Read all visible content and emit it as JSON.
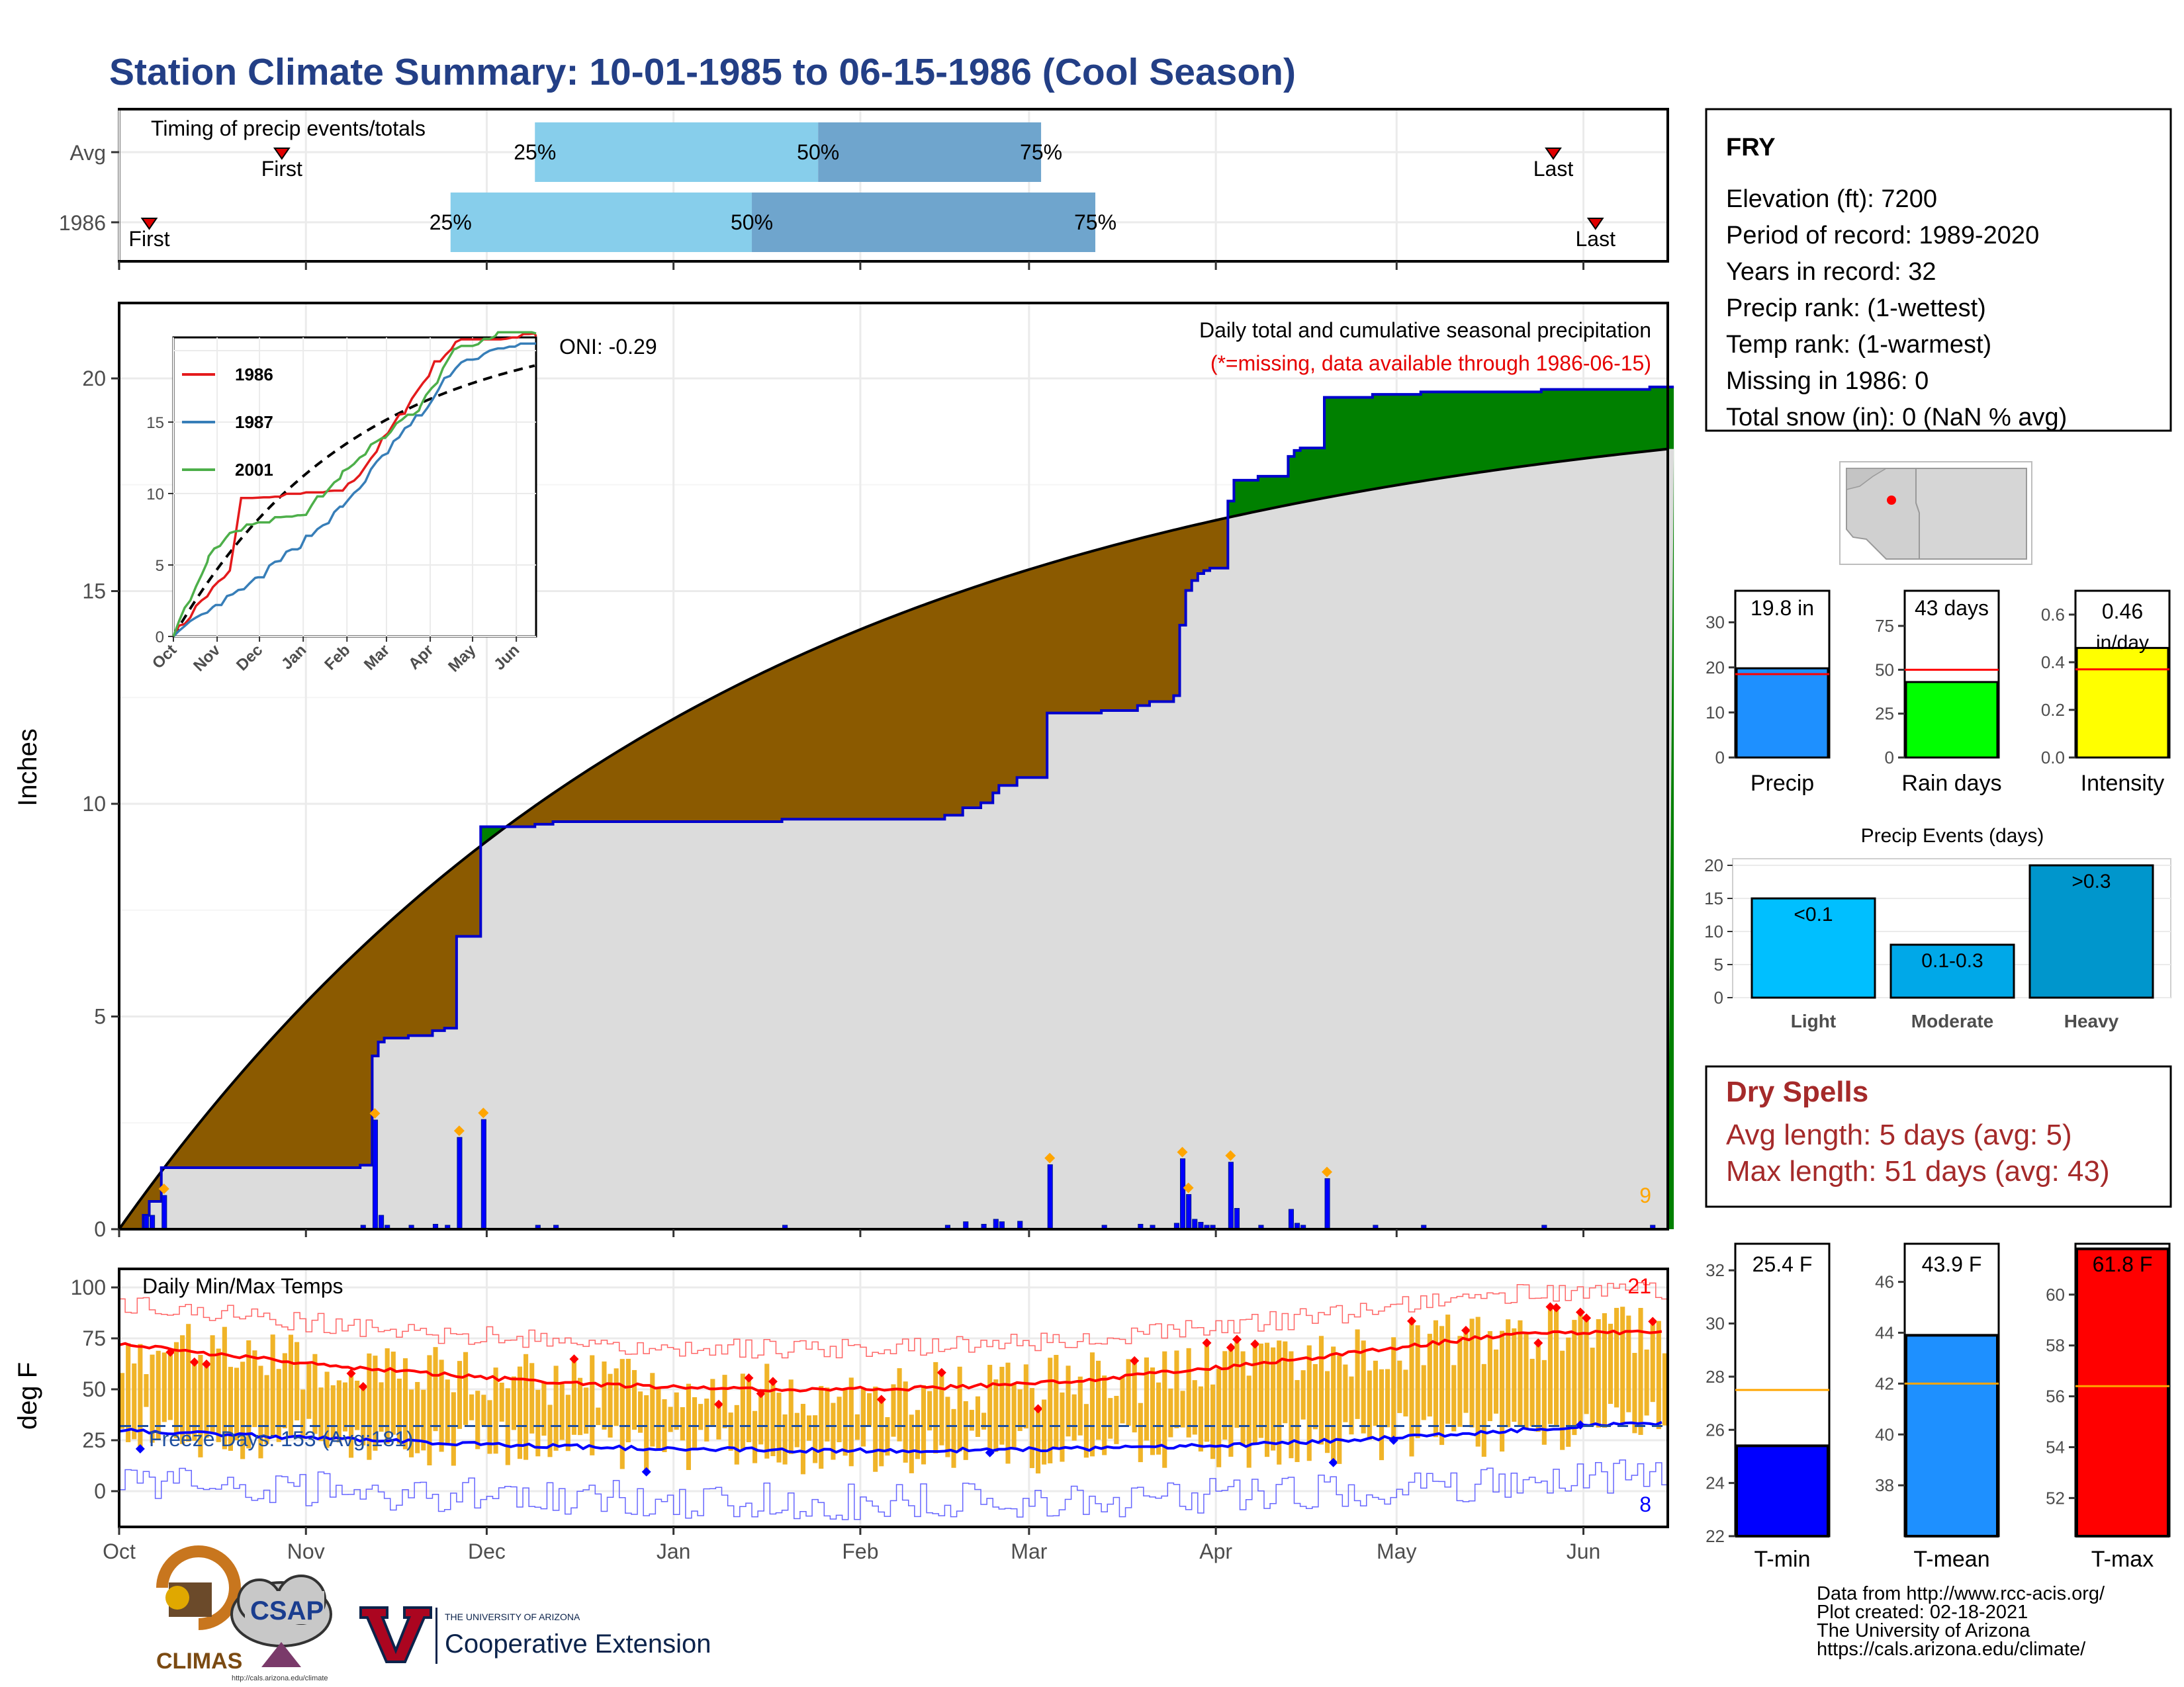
{
  "page": {
    "title": "Station Climate Summary: 10-01-1985 to 06-15-1986 (Cool Season)",
    "title_color": "#233f86"
  },
  "timing": {
    "caption": "Timing of precip events/totals",
    "rows": [
      {
        "label": "Avg",
        "first_label": "First",
        "first_date": "1985-10-28",
        "last_label": "Last",
        "last_date": "1986-05-27",
        "p25_label": "25%",
        "p25_date": "1985-12-09",
        "p50_label": "50%",
        "p50_date": "1986-01-25",
        "p75_label": "75%",
        "p75_date": "1986-03-03"
      },
      {
        "label": "1986",
        "first_label": "First",
        "first_date": "1985-10-06",
        "last_label": "Last",
        "last_date": "1986-06-03",
        "p25_label": "25%",
        "p25_date": "1985-11-25",
        "p50_label": "50%",
        "p50_date": "1986-01-14",
        "p75_label": "75%",
        "p75_date": "1986-03-12"
      }
    ],
    "colors": {
      "light": "#87ceeb",
      "dark": "#6fa5cd"
    }
  },
  "precip": {
    "ylabel": "Inches",
    "y_ticks": [
      "0",
      "5",
      "10",
      "15",
      "20"
    ],
    "x_ticks": [
      "Oct",
      "Nov",
      "Dec",
      "Jan",
      "Feb",
      "Mar",
      "Apr",
      "May",
      "Jun"
    ],
    "caption": "Daily total and cumulative seasonal precipitation",
    "missing_note": "(*=missing, data available through 1986-06-15)",
    "oni": "ONI: -0.29",
    "count_label": "9",
    "colors": {
      "above": "#008000",
      "below": "#8b5a00",
      "avg": "#dcdcdc",
      "line": "#0000cd"
    }
  },
  "inset": {
    "x_ticks": [
      "Oct",
      "Nov",
      "Dec",
      "Jan",
      "Feb",
      "Mar",
      "Apr",
      "May",
      "Jun"
    ],
    "y_ticks": [
      "0",
      "5",
      "10",
      "15"
    ],
    "legend": [
      {
        "name": "1986",
        "color": "#e41a1c"
      },
      {
        "name": "1987",
        "color": "#377eb8"
      },
      {
        "name": "2001",
        "color": "#4daf4a"
      }
    ]
  },
  "temps": {
    "ylabel": "deg F",
    "caption": "Daily Min/Max Temps",
    "freeze_label": "Freeze Days: 153 (Avg:181)",
    "y_ticks": [
      "0",
      "25",
      "50",
      "75",
      "100"
    ],
    "x_ticks": [
      "Oct",
      "Nov",
      "Dec",
      "Jan",
      "Feb",
      "Mar",
      "Apr",
      "May",
      "Jun"
    ],
    "count_hot": "21",
    "count_cold": "8",
    "colors": {
      "bar": "#f0b428",
      "max_avg": "#ff0000",
      "min_avg": "#0000ff"
    }
  },
  "station": {
    "name": "FRY",
    "lines": [
      "Elevation (ft): 7200",
      "Period of record: 1989-2020",
      "Years in record: 32",
      "Precip rank:  (1-wettest)",
      "Temp rank:  (1-warmest)",
      "Missing in 1986: 0",
      "Total snow (in): 0 (NaN % avg)"
    ]
  },
  "mini_bars": [
    {
      "label": "Precip",
      "value_label": "19.8 in",
      "value": 19.8,
      "avg": 18.5,
      "max": 37,
      "ticks": [
        "0",
        "10",
        "20",
        "30"
      ],
      "color": "#1e90ff"
    },
    {
      "label": "Rain days",
      "value_label": "43 days",
      "value": 43,
      "avg": 50,
      "max": 95,
      "ticks": [
        "0",
        "25",
        "50",
        "75"
      ],
      "color": "#00ff00"
    },
    {
      "label": "Intensity",
      "value_label": "0.46 in/day",
      "value": 0.46,
      "avg": 0.37,
      "max": 0.7,
      "ticks": [
        "0.0",
        "0.2",
        "0.4",
        "0.6"
      ],
      "color": "#ffff00"
    }
  ],
  "events": {
    "title": "Precip Events (days)",
    "y_ticks": [
      "0",
      "5",
      "10",
      "15",
      "20"
    ],
    "bars": [
      {
        "category": "Light",
        "value_label": "<0.1",
        "value": 15,
        "color": "#00bfff"
      },
      {
        "category": "Moderate",
        "value_label": "0.1-0.3",
        "value": 8,
        "color": "#00a8e8"
      },
      {
        "category": "Heavy",
        "value_label": ">0.3",
        "value": 20,
        "color": "#0096cc"
      }
    ]
  },
  "dry": {
    "title": "Dry Spells",
    "avg": "Avg length: 5 days (avg: 5)",
    "max": "Max length: 51 days (avg: 43)",
    "color": "#a52a2a"
  },
  "temp_bars": [
    {
      "label": "T-min",
      "value_label": "25.4 F",
      "value": 25.4,
      "avg": 27.5,
      "min": 22,
      "max": 33,
      "ticks": [
        "22",
        "24",
        "26",
        "28",
        "30",
        "32"
      ],
      "color": "#0000ff"
    },
    {
      "label": "T-mean",
      "value_label": "43.9 F",
      "value": 43.9,
      "avg": 42.0,
      "min": 36,
      "max": 47.5,
      "ticks": [
        "38",
        "40",
        "42",
        "44",
        "46"
      ],
      "color": "#1e90ff"
    },
    {
      "label": "T-max",
      "value_label": "61.8 F",
      "value": 61.8,
      "avg": 56.4,
      "min": 50.5,
      "max": 62,
      "ticks": [
        "52",
        "54",
        "56",
        "58",
        "60"
      ],
      "color": "#ff0000"
    }
  ],
  "footer": {
    "credits": [
      "Data from http://www.rcc-acis.org/",
      "Plot created: 02-18-2021",
      "The University of Arizona",
      "https://cals.arizona.edu/climate/"
    ],
    "logos": {
      "climas": "CLIMAS",
      "csap": "CSAP",
      "csap_url": "http://cals.arizona.edu/climate",
      "ua_top": "THE UNIVERSITY OF ARIZONA",
      "ua_bottom": "Cooperative Extension"
    }
  }
}
